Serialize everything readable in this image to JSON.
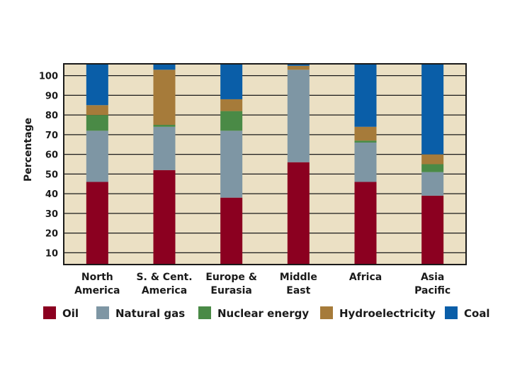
{
  "chart_data": {
    "type": "bar",
    "stacked": true,
    "title": "",
    "xlabel": "",
    "ylabel": "Percentage",
    "ylim": [
      4,
      106
    ],
    "yticks": [
      10,
      20,
      30,
      40,
      50,
      60,
      70,
      80,
      90,
      100
    ],
    "grid": true,
    "legend_position": "bottom",
    "categories": [
      [
        "North",
        "America"
      ],
      [
        "S. & Cent.",
        "America"
      ],
      [
        "Europe &",
        "Eurasia"
      ],
      [
        "Middle",
        "East"
      ],
      [
        "Africa"
      ],
      [
        "Asia",
        "Pacific"
      ]
    ],
    "series": [
      {
        "name": "Oil",
        "color": "#8b0020",
        "values": [
          46,
          52,
          38,
          56,
          46,
          39
        ]
      },
      {
        "name": "Natural gas",
        "color": "#7e96a4",
        "values": [
          26,
          22,
          34,
          47,
          20,
          12
        ]
      },
      {
        "name": "Nuclear energy",
        "color": "#4a8a46",
        "values": [
          8,
          1,
          10,
          0,
          1,
          4
        ]
      },
      {
        "name": "Hydroelectricity",
        "color": "#a67b3a",
        "values": [
          5,
          28,
          6,
          2,
          7,
          5
        ]
      },
      {
        "name": "Coal",
        "color": "#0a5ea8",
        "values": [
          21,
          4,
          18,
          2,
          32,
          46
        ]
      }
    ],
    "colors": {
      "plot_background": "#ebe0c4",
      "gridline": "#1a1a1a",
      "axis": "#1a1a1a"
    }
  }
}
